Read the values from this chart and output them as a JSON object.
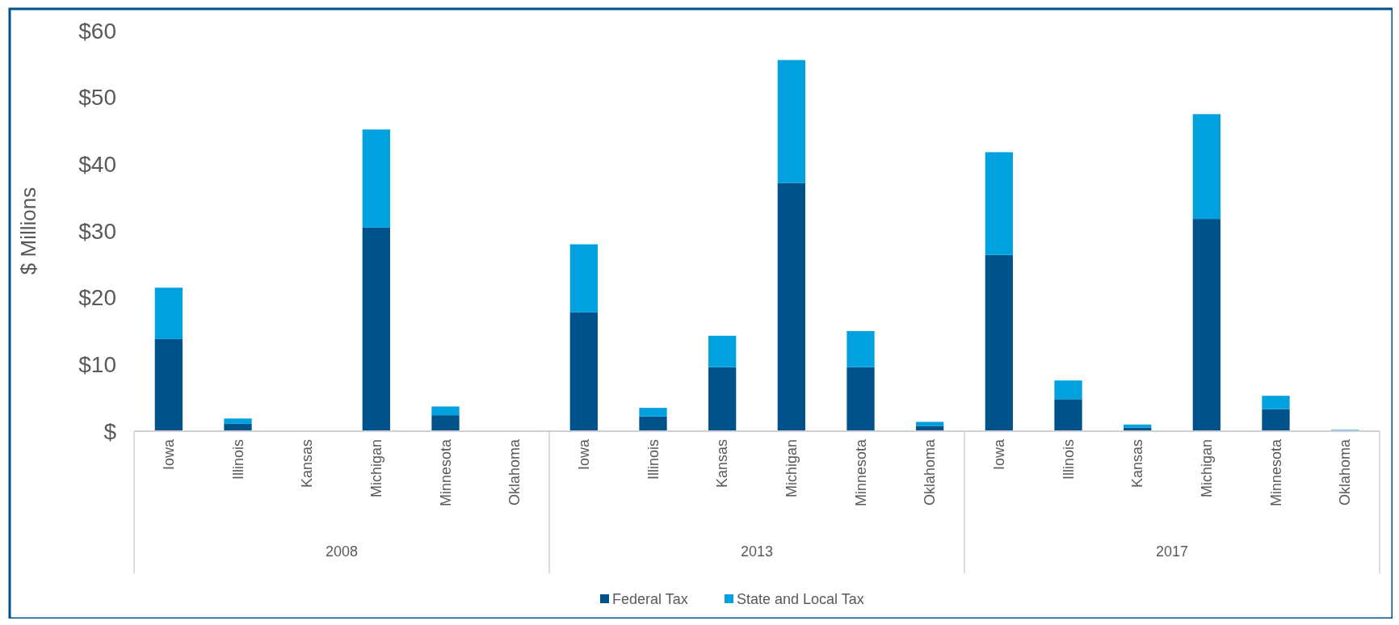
{
  "chart_data": {
    "type": "bar",
    "stacked": true,
    "ylabel": "$ Millions",
    "categories": [
      "Iowa",
      "Illinois",
      "Kansas",
      "Michigan",
      "Minnesota",
      "Oklahoma",
      "Iowa",
      "Illinois",
      "Kansas",
      "Michigan",
      "Minnesota",
      "Oklahoma",
      "Iowa",
      "Illinois",
      "Kansas",
      "Michigan",
      "Minnesota",
      "Oklahoma"
    ],
    "series": [
      {
        "name": "Federal Tax",
        "color": "#00538a",
        "values": [
          13.8,
          1.1,
          0,
          30.5,
          2.4,
          0,
          17.8,
          2.2,
          9.6,
          37.2,
          9.6,
          0.8,
          26.4,
          4.8,
          0.5,
          31.8,
          3.3,
          0
        ]
      },
      {
        "name": "State and Local Tax",
        "color": "#00a1de",
        "values": [
          7.7,
          0.8,
          0,
          14.7,
          1.3,
          0,
          10.2,
          1.3,
          4.7,
          18.4,
          5.4,
          0.6,
          15.4,
          2.8,
          0.5,
          15.7,
          2.0,
          0.2
        ]
      }
    ],
    "ylim": [
      0,
      60
    ],
    "yticks": [
      {
        "value": 0,
        "label": "$"
      },
      {
        "value": 10,
        "label": "$10"
      },
      {
        "value": 20,
        "label": "$20"
      },
      {
        "value": 30,
        "label": "$30"
      },
      {
        "value": 40,
        "label": "$40"
      },
      {
        "value": 50,
        "label": "$50"
      },
      {
        "value": 60,
        "label": "$60"
      }
    ],
    "annotations": [
      "2008",
      "2013",
      "2017"
    ],
    "legend": "bottom"
  }
}
